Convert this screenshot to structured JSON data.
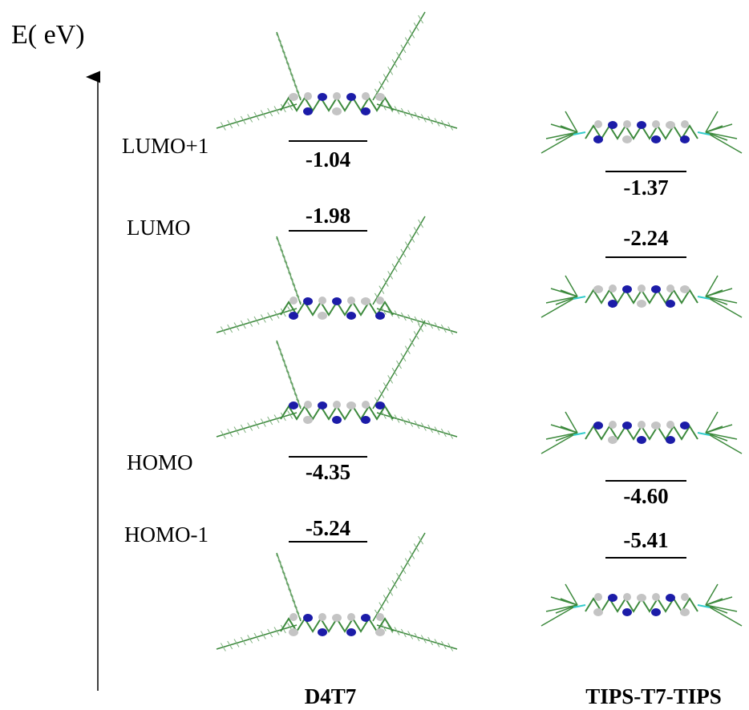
{
  "axis_label": "E( eV)",
  "levels": [
    "LUMO+1",
    "LUMO",
    "HOMO",
    "HOMO-1"
  ],
  "molecules": [
    {
      "name": "D4T7",
      "energies": [
        "-1.04",
        "-1.98",
        "-4.35",
        "-5.24"
      ]
    },
    {
      "name": "TIPS-T7-TIPS",
      "energies": [
        "-1.37",
        "-2.24",
        "-4.60",
        "-5.41"
      ]
    }
  ]
}
